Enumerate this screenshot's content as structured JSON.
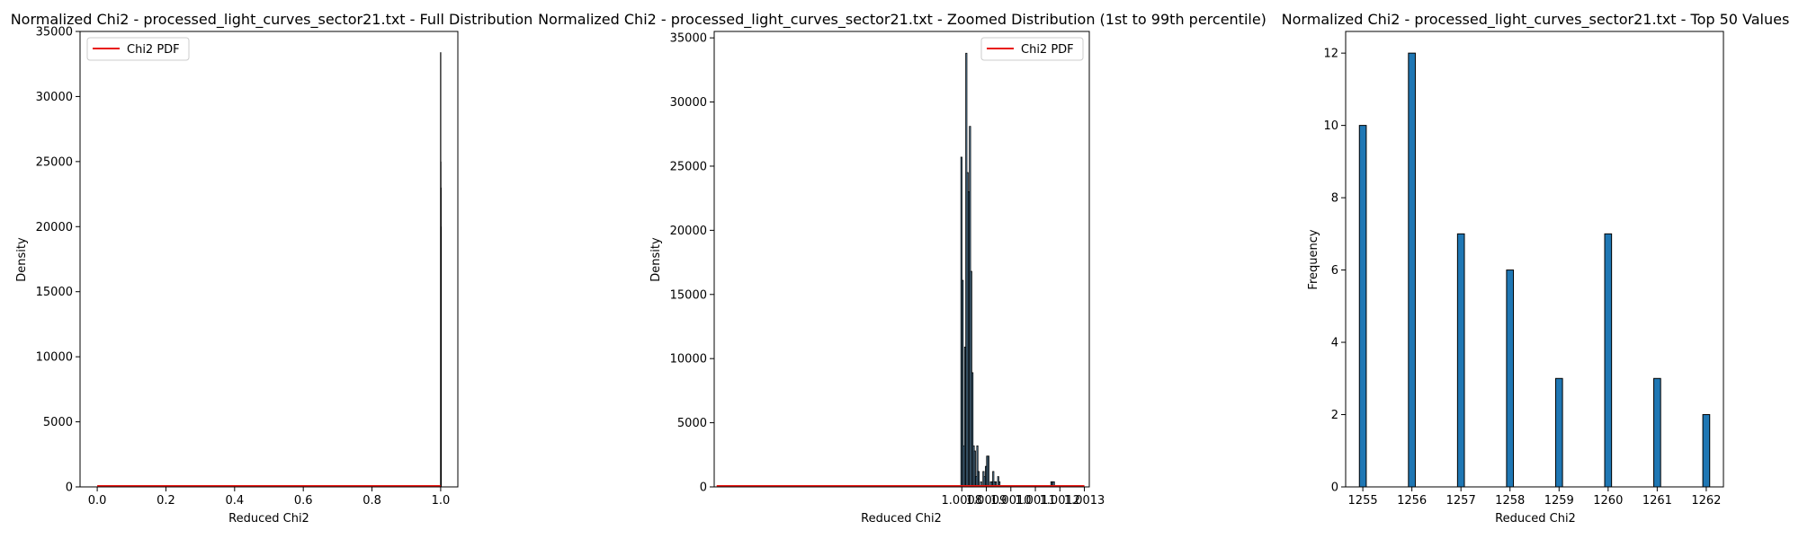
{
  "chart_data": [
    {
      "type": "bar",
      "title": "Normalized Chi2 - processed_light_curves_sector21.txt - Full Distribution",
      "xlabel": "Reduced Chi2",
      "ylabel": "Density",
      "xlim": [
        -0.05,
        1.05
      ],
      "ylim": [
        0,
        35000
      ],
      "x_ticks": [
        0.0,
        0.2,
        0.4,
        0.6,
        0.8,
        1.0
      ],
      "x_tick_labels": [
        "0.0",
        "0.2",
        "0.4",
        "0.6",
        "0.8",
        "1.0"
      ],
      "y_ticks": [
        0,
        5000,
        10000,
        15000,
        20000,
        25000,
        30000,
        35000
      ],
      "y_tick_labels": [
        "0",
        "5000",
        "10000",
        "15000",
        "20000",
        "25000",
        "30000",
        "35000"
      ],
      "legend": [
        "Chi2 PDF"
      ],
      "legend_position": "upper left",
      "grid": false,
      "bars": [
        {
          "x": 1.0,
          "y": 33400
        },
        {
          "x": 1.0005,
          "y": 25000
        },
        {
          "x": 1.001,
          "y": 23000
        },
        {
          "x": 1.0015,
          "y": 20000
        }
      ],
      "pdf_line": {
        "x": [
          0.0,
          1.0
        ],
        "y": [
          0,
          0
        ]
      }
    },
    {
      "type": "bar",
      "title": "Normalized Chi2 - processed_light_curves_sector21.txt - Zoomed Distribution (1st to 99th percentile)",
      "xlabel": "Reduced Chi2",
      "ylabel": "Density",
      "xlim": [
        0.99979,
        1.00132
      ],
      "ylim": [
        0,
        35500
      ],
      "x_ticks": [
        1.0008,
        1.0009,
        1.001,
        1.0011,
        1.0012,
        1.0013
      ],
      "x_tick_labels": [
        "1.0008",
        "1.0009",
        "1.0010",
        "1.0011",
        "1.0012",
        "1.0013"
      ],
      "y_ticks": [
        0,
        5000,
        10000,
        15000,
        20000,
        25000,
        30000,
        35000
      ],
      "y_tick_labels": [
        "0",
        "5000",
        "10000",
        "15000",
        "20000",
        "25000",
        "30000",
        "35000"
      ],
      "legend": [
        "Chi2 PDF"
      ],
      "legend_position": "upper right",
      "grid": false,
      "bin_width": 4.9e-06,
      "bins": [
        {
          "x": 1.000796,
          "y": 25700
        },
        {
          "x": 1.000801,
          "y": 16100
        },
        {
          "x": 1.000806,
          "y": 3200
        },
        {
          "x": 1.000811,
          "y": 10900
        },
        {
          "x": 1.000816,
          "y": 33800
        },
        {
          "x": 1.000821,
          "y": 24500
        },
        {
          "x": 1.000826,
          "y": 23000
        },
        {
          "x": 1.000831,
          "y": 28100
        },
        {
          "x": 1.000836,
          "y": 16800
        },
        {
          "x": 1.000841,
          "y": 8900
        },
        {
          "x": 1.000846,
          "y": 3200
        },
        {
          "x": 1.000851,
          "y": 2800
        },
        {
          "x": 1.000856,
          "y": 800
        },
        {
          "x": 1.000861,
          "y": 3200
        },
        {
          "x": 1.000866,
          "y": 1200
        },
        {
          "x": 1.000876,
          "y": 400
        },
        {
          "x": 1.000886,
          "y": 1200
        },
        {
          "x": 1.000891,
          "y": 800
        },
        {
          "x": 1.000896,
          "y": 1600
        },
        {
          "x": 1.000901,
          "y": 2400
        },
        {
          "x": 1.000906,
          "y": 2400
        },
        {
          "x": 1.000916,
          "y": 400
        },
        {
          "x": 1.000921,
          "y": 400
        },
        {
          "x": 1.000926,
          "y": 1200
        },
        {
          "x": 1.000931,
          "y": 400
        },
        {
          "x": 1.000936,
          "y": 400
        },
        {
          "x": 1.000946,
          "y": 800
        },
        {
          "x": 1.000951,
          "y": 400
        },
        {
          "x": 1.001163,
          "y": 400
        },
        {
          "x": 1.001168,
          "y": 400
        },
        {
          "x": 1.001173,
          "y": 400
        }
      ],
      "pdf_line": {
        "x": [
          0.9998,
          1.0013
        ],
        "y": [
          0,
          0
        ]
      }
    },
    {
      "type": "bar",
      "title": "Normalized Chi2 - processed_light_curves_sector21.txt - Top 50 Values",
      "xlabel": "Reduced Chi2",
      "ylabel": "Frequency",
      "xlim": [
        1254.65,
        1262.35
      ],
      "ylim": [
        0,
        12.6
      ],
      "x_ticks": [
        1255,
        1256,
        1257,
        1258,
        1259,
        1260,
        1261,
        1262
      ],
      "x_tick_labels": [
        "1255",
        "1256",
        "1257",
        "1258",
        "1259",
        "1260",
        "1261",
        "1262"
      ],
      "y_ticks": [
        0,
        2,
        4,
        6,
        8,
        10,
        12
      ],
      "y_tick_labels": [
        "0",
        "2",
        "4",
        "6",
        "8",
        "10",
        "12"
      ],
      "grid": false,
      "bar_width": 0.14,
      "categories": [
        1255,
        1256,
        1257,
        1258,
        1259,
        1260,
        1261,
        1262
      ],
      "values": [
        10,
        12,
        7,
        6,
        3,
        7,
        3,
        2
      ]
    }
  ],
  "colors": {
    "pdf_line": "#e8150f",
    "zoom_bar_fill": "#6a9fc5",
    "top_bar_fill": "#1f77b4",
    "full_bar_fill": "#000000",
    "edge": "#000000"
  }
}
